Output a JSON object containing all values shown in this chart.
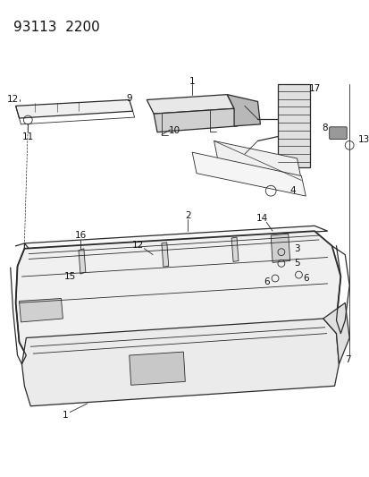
{
  "title": "93113  2200",
  "bg": "#ffffff",
  "lc": "#2a2a2a",
  "figsize": [
    4.14,
    5.33
  ],
  "dpi": 100,
  "title_fs": 11,
  "label_fs": 7.5
}
